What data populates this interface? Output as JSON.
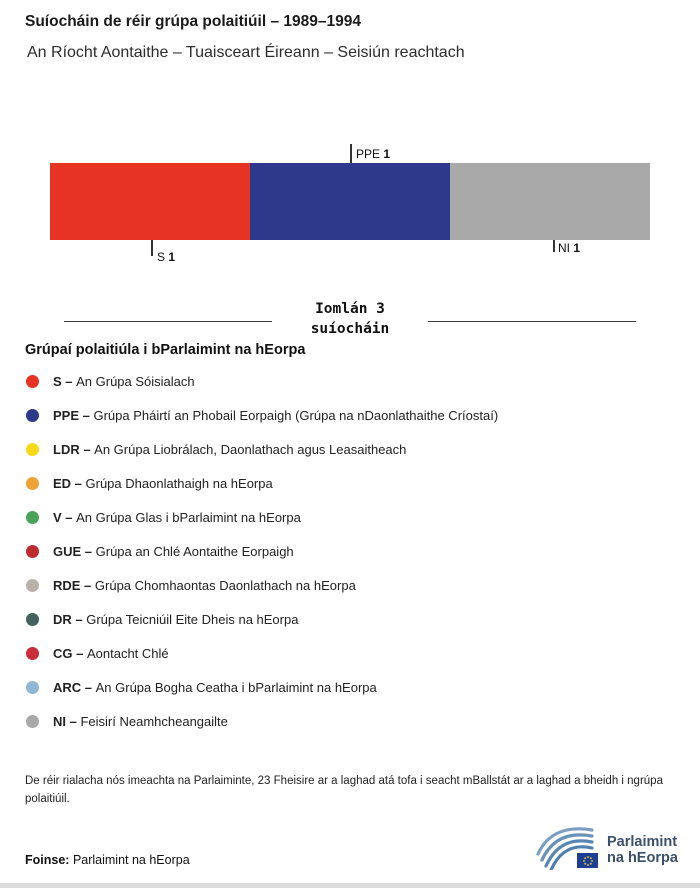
{
  "header": {
    "title": "Suíocháin de réir grúpa polaitiúil – 1989–1994",
    "subtitle": "An Ríocht Aontaithe – Tuaisceart Éireann – Seisiún reachtach"
  },
  "chart_data": {
    "type": "bar",
    "variant": "horizontal-stacked",
    "title": "Suíocháin de réir grúpa polaitiúil – 1989–1994",
    "subtitle": "An Ríocht Aontaithe – Tuaisceart Éireann – Seisiún reachtach",
    "total_seats": 3,
    "total_label": "Iomlán 3 suíocháin",
    "categories": [
      "S",
      "PPE",
      "NI"
    ],
    "values": [
      1,
      1,
      1
    ],
    "segments": [
      {
        "group": "S",
        "seats": 1,
        "color": "#e63323",
        "label_position": "below"
      },
      {
        "group": "PPE",
        "seats": 1,
        "color": "#2d3a8c",
        "label_position": "above"
      },
      {
        "group": "NI",
        "seats": 1,
        "color": "#a9a9a9",
        "label_position": "below"
      }
    ]
  },
  "total": {
    "line1": "Iomlán 3",
    "line2": "suíocháin"
  },
  "legend": {
    "heading": "Grúpaí polaitiúla i bParlaimint na hEorpa",
    "separator": "–",
    "items": [
      {
        "code": "S",
        "name": "An Grúpa Sóisialach",
        "color": "#e63323"
      },
      {
        "code": "PPE",
        "name": "Grúpa Pháirtí an Phobail Eorpaigh (Grúpa na nDaonlathaithe Críostaí)",
        "color": "#2d3a8c"
      },
      {
        "code": "LDR",
        "name": "An Grúpa Liobrálach, Daonlathach agus Leasaitheach",
        "color": "#f7d917"
      },
      {
        "code": "ED",
        "name": "Grúpa Dhaonlathaigh na hEorpa",
        "color": "#eca437"
      },
      {
        "code": "V",
        "name": "An Grúpa Glas i bParlaimint na hEorpa",
        "color": "#4ba35a"
      },
      {
        "code": "GUE",
        "name": "Grúpa an Chlé Aontaithe Eorpaigh",
        "color": "#bf2c30"
      },
      {
        "code": "RDE",
        "name": "Grúpa Chomhaontas Daonlathach na hEorpa",
        "color": "#b8b2a9"
      },
      {
        "code": "DR",
        "name": "Grúpa Teicniúil Eite Dheis na hEorpa",
        "color": "#44625d"
      },
      {
        "code": "CG",
        "name": "Aontacht Chlé",
        "color": "#c92d39"
      },
      {
        "code": "ARC",
        "name": "An Grúpa Bogha Ceatha i bParlaimint na hEorpa",
        "color": "#8fb7d4"
      },
      {
        "code": "NI",
        "name": "Feisirí Neamhcheangailte",
        "color": "#a9a9a9"
      }
    ]
  },
  "footnote": "De réir rialacha nós imeachta na Parlaiminte, 23 Fheisire ar a laghad atá tofa i seacht mBallstát ar a laghad a bheidh i ngrúpa polaitiúil.",
  "source": {
    "label": "Foinse:",
    "value": "Parlaimint na hEorpa"
  },
  "logo": {
    "line1": "Parlaimint",
    "line2": "na hEorpa"
  }
}
